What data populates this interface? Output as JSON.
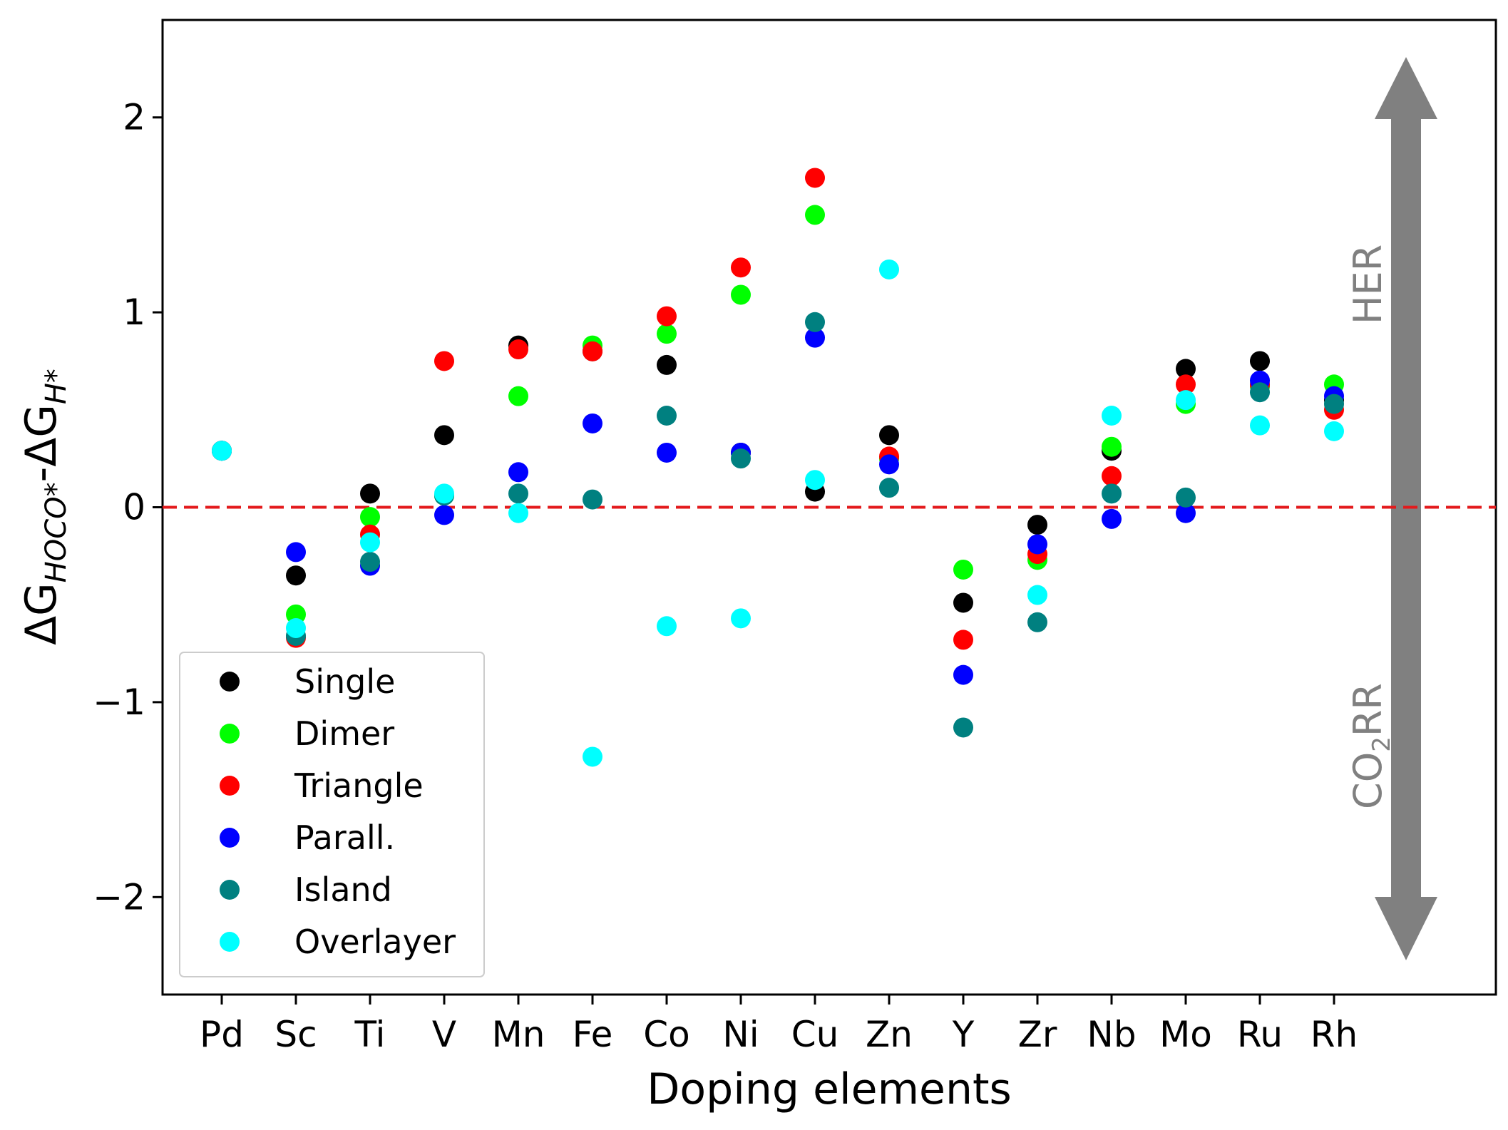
{
  "chart_data": {
    "type": "scatter",
    "title": "",
    "xlabel": "Doping elements",
    "ylabel": {
      "prefix": "ΔG",
      "sub1": "HOCO*",
      "mid": "-ΔG",
      "sub2": "H*"
    },
    "categories": [
      "Pd",
      "Sc",
      "Ti",
      "V",
      "Mn",
      "Fe",
      "Co",
      "Ni",
      "Cu",
      "Zn",
      "Y",
      "Zr",
      "Nb",
      "Mo",
      "Ru",
      "Rh"
    ],
    "ylim": [
      -2.5,
      2.5
    ],
    "yticks": [
      2,
      1,
      0,
      -1,
      -2
    ],
    "ytick_labels": [
      "2",
      "1",
      "0",
      "−1",
      "−2"
    ],
    "grid": false,
    "legend_position": "lower-left",
    "reference_line": {
      "y": 0,
      "color": "#e31a1c",
      "style": "dashed"
    },
    "arrow": {
      "color": "#808080",
      "top_label": "HER",
      "bottom_label_main": "CO",
      "bottom_label_sub": "2",
      "bottom_label_tail": "RR"
    },
    "series": [
      {
        "name": "Single",
        "color": "#000000",
        "values": [
          0.29,
          -0.35,
          0.07,
          0.37,
          0.83,
          0.8,
          0.73,
          0.28,
          0.08,
          0.37,
          -0.49,
          -0.09,
          0.29,
          0.71,
          0.75,
          0.55
        ]
      },
      {
        "name": "Dimer",
        "color": "#00ff00",
        "values": [
          0.29,
          -0.55,
          -0.05,
          0.06,
          0.57,
          0.83,
          0.89,
          1.09,
          1.5,
          0.25,
          -0.32,
          -0.27,
          0.31,
          0.53,
          0.62,
          0.63
        ]
      },
      {
        "name": "Triangle",
        "color": "#ff0000",
        "values": [
          0.29,
          -0.67,
          -0.14,
          0.75,
          0.81,
          0.8,
          0.98,
          1.23,
          1.69,
          0.26,
          -0.68,
          -0.24,
          0.16,
          0.63,
          0.63,
          0.5
        ]
      },
      {
        "name": "Parall.",
        "color": "#0000ff",
        "values": [
          0.29,
          -0.23,
          -0.3,
          -0.04,
          0.18,
          0.43,
          0.28,
          0.28,
          0.87,
          0.22,
          -0.86,
          -0.19,
          -0.06,
          -0.03,
          0.65,
          0.57
        ]
      },
      {
        "name": "Island",
        "color": "#008080",
        "values": [
          0.29,
          -0.66,
          -0.28,
          0.06,
          0.07,
          0.04,
          0.47,
          0.25,
          0.95,
          0.1,
          -1.13,
          -0.59,
          0.07,
          0.05,
          0.59,
          0.53
        ]
      },
      {
        "name": "Overlayer",
        "color": "#00ffff",
        "values": [
          0.29,
          -0.62,
          -0.18,
          0.07,
          -0.03,
          -1.28,
          -0.61,
          -0.57,
          0.14,
          1.22,
          null,
          -0.45,
          0.47,
          0.55,
          0.42,
          0.39
        ]
      }
    ]
  }
}
